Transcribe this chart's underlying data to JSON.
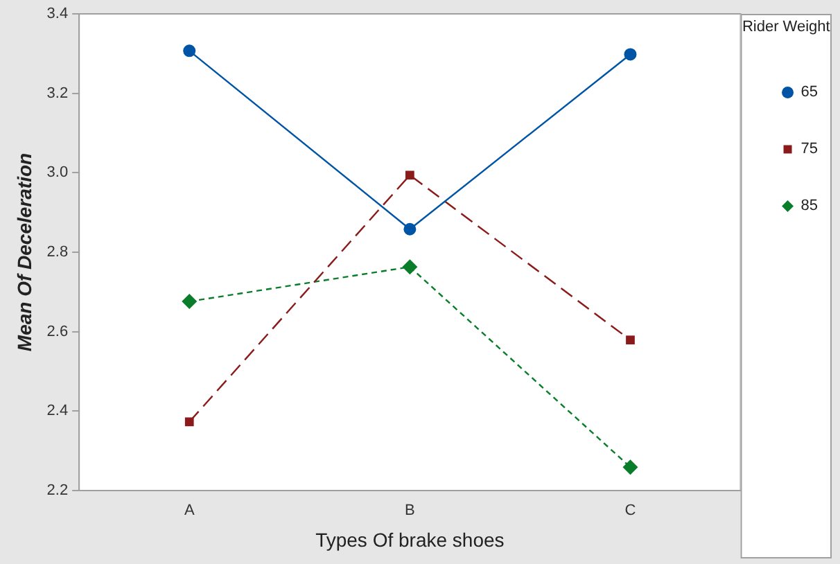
{
  "chart_data": {
    "type": "line",
    "xlabel": "Types Of brake shoes",
    "ylabel": "Mean Of Deceleration",
    "legend_title": "Rider Weight",
    "categories": [
      "A",
      "B",
      "C"
    ],
    "series": [
      {
        "name": "65",
        "color": "#0054a6",
        "values": [
          3.307,
          2.858,
          3.298
        ],
        "marker": "circle",
        "line_style": "solid"
      },
      {
        "name": "75",
        "color": "#8b1a1a",
        "values": [
          2.373,
          2.994,
          2.579
        ],
        "marker": "square",
        "line_style": "dashed"
      },
      {
        "name": "85",
        "color": "#0a7d2a",
        "values": [
          2.676,
          2.763,
          2.259
        ],
        "marker": "diamond",
        "line_style": "dotted"
      }
    ],
    "ylim": [
      2.2,
      3.4
    ],
    "yticks": [
      {
        "value": 2.2,
        "label": "2.2"
      },
      {
        "value": 2.4,
        "label": "2.4"
      },
      {
        "value": 2.6,
        "label": "2.6"
      },
      {
        "value": 2.8,
        "label": "2.8"
      },
      {
        "value": 3.0,
        "label": "3.0"
      },
      {
        "value": 3.2,
        "label": "3.2"
      },
      {
        "value": 3.4,
        "label": "3.4"
      }
    ],
    "grid": false,
    "legend": "right"
  }
}
